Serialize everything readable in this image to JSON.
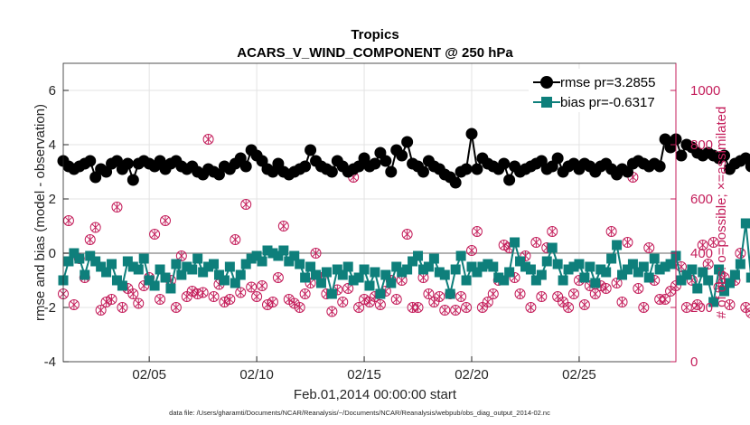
{
  "chart_data": {
    "type": "line",
    "title": "Tropics",
    "subtitle": "ACARS_V_WIND_COMPONENT @ 250 hPa",
    "xlabel": "Feb.01,2014 00:00:00 start",
    "ylabel": "rmse and bias (model - observation)",
    "ylabel_right": "# of obs: o=possible; ×=assimilated",
    "xlim": [
      1.0,
      29.5
    ],
    "ylim": [
      -4,
      7
    ],
    "ylim_right": [
      0,
      1100
    ],
    "x_ticks": [
      5,
      10,
      15,
      20,
      25
    ],
    "x_tick_labels": [
      "02/05",
      "02/10",
      "02/15",
      "02/20",
      "02/25"
    ],
    "y_ticks": [
      -4,
      -2,
      0,
      2,
      4,
      6
    ],
    "y_tick_labels": [
      "-4",
      "-2",
      "0",
      "2",
      "4",
      "6"
    ],
    "y_right_ticks": [
      0,
      200,
      400,
      600,
      800,
      1000
    ],
    "y_right_tick_labels": [
      "0",
      "200",
      "400",
      "600",
      "800",
      "1000"
    ],
    "grid": true,
    "legend_position": "top-right",
    "x_step_days": 0.25,
    "x_start": 1.0,
    "series": [
      {
        "name": "rmse pr=3.2855",
        "color": "#000000",
        "marker": "circle",
        "values": [
          3.4,
          3.2,
          3.1,
          3.2,
          3.3,
          3.4,
          2.8,
          3.1,
          3.0,
          3.3,
          3.4,
          3.1,
          3.3,
          2.7,
          3.3,
          3.4,
          3.3,
          3.2,
          3.4,
          3.1,
          3.3,
          3.4,
          3.2,
          3.1,
          3.2,
          3.0,
          2.9,
          3.1,
          3.0,
          2.9,
          3.2,
          3.1,
          3.3,
          3.5,
          3.2,
          3.8,
          3.6,
          3.4,
          3.1,
          3.0,
          3.3,
          3.0,
          2.9,
          3.0,
          3.1,
          3.2,
          3.8,
          3.4,
          3.2,
          3.1,
          3.0,
          3.4,
          3.2,
          3.0,
          3.1,
          3.2,
          3.5,
          3.2,
          3.3,
          3.7,
          3.4,
          3.0,
          3.8,
          3.6,
          4.1,
          3.3,
          3.2,
          3.0,
          3.4,
          3.2,
          3.1,
          2.9,
          2.8,
          2.6,
          3.0,
          3.1,
          4.4,
          3.1,
          3.5,
          3.3,
          3.2,
          3.1,
          3.3,
          2.7,
          3.2,
          3.0,
          3.1,
          3.2,
          3.3,
          3.4,
          3.1,
          3.2,
          3.5,
          3.0,
          3.2,
          3.3,
          3.1,
          3.3,
          3.2,
          3.0,
          3.2,
          3.3,
          3.1,
          2.9,
          3.1,
          3.0,
          3.3,
          3.4,
          3.3,
          3.2,
          3.3,
          3.2,
          4.2,
          3.9,
          4.2,
          3.6,
          4.0,
          3.9,
          3.7,
          3.6,
          3.7,
          3.6,
          3.5,
          3.6,
          3.1,
          3.3,
          3.4,
          3.5,
          3.2,
          3.3,
          3.5,
          2.9
        ]
      },
      {
        "name": "bias pr=-0.6317",
        "color": "#0e7f7b",
        "marker": "square",
        "values": [
          -1.0,
          -0.3,
          0.0,
          -0.2,
          -0.8,
          -0.1,
          -0.3,
          -0.5,
          -0.7,
          -0.4,
          -1.0,
          -1.2,
          -0.3,
          -0.5,
          -0.6,
          -0.2,
          -1.0,
          -1.2,
          -0.6,
          -0.9,
          -1.3,
          -0.4,
          -0.8,
          -0.5,
          -0.6,
          -0.2,
          -0.7,
          -0.5,
          -0.4,
          -0.8,
          -1.0,
          -0.5,
          -1.1,
          -0.8,
          -0.4,
          -0.2,
          -0.1,
          -0.3,
          0.1,
          0.0,
          -0.1,
          0.1,
          -0.3,
          -0.1,
          -0.4,
          -0.9,
          -0.5,
          -0.8,
          -1.1,
          -0.7,
          -1.5,
          -0.6,
          -0.8,
          -0.5,
          -1.0,
          -0.9,
          -0.6,
          -1.2,
          -0.7,
          -1.5,
          -0.8,
          -1.1,
          -0.5,
          -0.7,
          -0.6,
          -0.3,
          -0.1,
          -0.6,
          -0.5,
          -0.2,
          -0.7,
          -0.8,
          -1.5,
          -0.6,
          -0.1,
          -1.0,
          -0.5,
          -0.7,
          -0.5,
          -0.4,
          -0.5,
          -0.9,
          -1.0,
          -0.7,
          0.4,
          -0.3,
          -0.5,
          -0.6,
          -1.0,
          -0.8,
          -0.3,
          0.2,
          -0.4,
          -1.0,
          -0.6,
          -0.5,
          -0.4,
          -0.9,
          -0.5,
          -1.1,
          -0.6,
          -0.7,
          -0.2,
          0.3,
          -0.8,
          -0.6,
          -0.4,
          -0.7,
          -0.5,
          -0.9,
          -0.2,
          -0.6,
          -0.5,
          -0.4,
          -0.1,
          -1.0,
          -0.8,
          -0.6,
          -1.3,
          -0.7,
          -1.0,
          -1.8,
          -0.6,
          -1.4,
          -1.1,
          -0.8,
          -0.4,
          1.1,
          -0.9,
          -0.6,
          -0.4,
          0.3,
          -0.8,
          -0.4
        ]
      }
    ],
    "obs_color": "#c41e5b",
    "obs_possible": [
      250,
      520,
      210,
      380,
      310,
      450,
      495,
      190,
      220,
      230,
      570,
      200,
      270,
      250,
      215,
      280,
      310,
      470,
      230,
      520,
      300,
      200,
      390,
      240,
      260,
      250,
      255,
      820,
      240,
      285,
      220,
      230,
      450,
      255,
      580,
      275,
      240,
      280,
      210,
      220,
      310,
      500,
      230,
      215,
      200,
      250,
      290,
      400,
      310,
      250,
      185,
      265,
      220,
      270,
      680,
      200,
      230,
      220,
      240,
      210,
      260,
      300,
      230,
      300,
      470,
      200,
      200,
      310,
      250,
      220,
      240,
      190,
      250,
      190,
      240,
      200,
      410,
      480,
      200,
      220,
      250,
      300,
      430,
      420,
      310,
      250,
      390,
      200,
      440,
      240,
      420,
      480,
      240,
      220,
      200,
      250,
      300,
      210,
      280,
      250,
      280,
      270,
      480,
      290,
      220,
      440,
      680,
      270,
      200,
      420,
      300,
      230,
      230,
      260,
      280,
      350,
      200,
      300,
      210,
      430,
      360,
      440,
      275,
      310,
      210,
      300,
      400,
      200,
      180,
      220,
      250,
      310,
      270,
      530,
      200,
      280,
      230,
      200,
      350,
      230,
      0
    ]
  }
}
